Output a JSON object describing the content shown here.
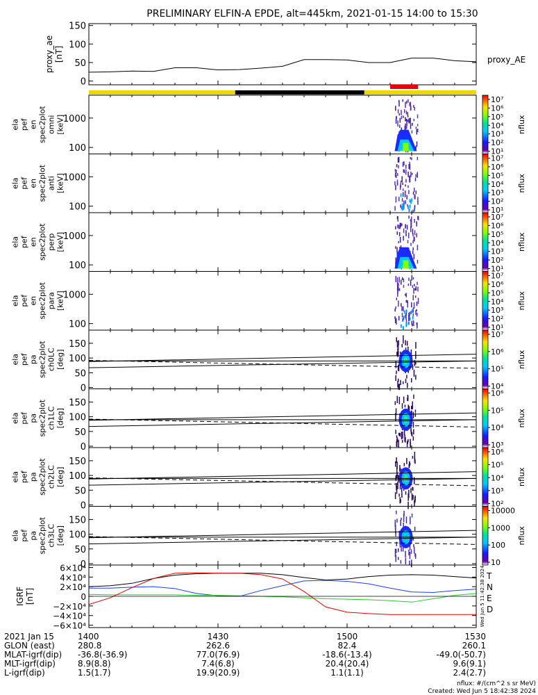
{
  "title": "PRELIMINARY ELFIN-A EPDE, alt=445km, 2021-01-15 14:00 to 15:30",
  "time_axis": {
    "ticks": [
      "1400",
      "1430",
      "1500",
      "1530"
    ],
    "tick_minutes": [
      0,
      30,
      60,
      90
    ],
    "start_minute": 0,
    "end_minute": 90
  },
  "ae_panel": {
    "ylabel_lines": [
      "proxy_ae",
      "[nT]"
    ],
    "legend": "proxy_AE",
    "ylim": [
      -10,
      155
    ],
    "ticks": [
      "150",
      "100",
      "50",
      "0"
    ],
    "tick_values": [
      150,
      100,
      50,
      0
    ]
  },
  "status_bar": {
    "segments": [
      {
        "start": 0,
        "end": 34,
        "color": "#f2d500"
      },
      {
        "start": 34,
        "end": 64,
        "color": "#000000"
      },
      {
        "start": 64,
        "end": 90,
        "color": "#f2d500"
      }
    ],
    "science_zone": {
      "start": 70,
      "end": 76.5,
      "color": "#ee0000"
    }
  },
  "energy_panels": [
    {
      "label_lines": [
        "ela",
        "pef",
        "en",
        "spec2plot",
        "omni",
        "[keV]"
      ],
      "ticks": [
        "1000",
        "100"
      ],
      "tick_values": [
        1000,
        100
      ],
      "cb_ticks": [
        "10⁷",
        "10⁶",
        "10⁵",
        "10⁴",
        "10³",
        "10²",
        "10¹"
      ],
      "cb_label": "nflux",
      "intensity": 1.0
    },
    {
      "label_lines": [
        "ela",
        "pef",
        "en",
        "spec2plot",
        "anti",
        "[keV]"
      ],
      "ticks": [
        "1000",
        "100"
      ],
      "tick_values": [
        1000,
        100
      ],
      "cb_ticks": [
        "10⁷",
        "10⁶",
        "10⁵",
        "10⁴",
        "10³",
        "10²",
        "10¹"
      ],
      "cb_label": "nflux",
      "intensity": 0.35
    },
    {
      "label_lines": [
        "ela",
        "pef",
        "en",
        "spec2plot",
        "perp",
        "[keV]"
      ],
      "ticks": [
        "1000",
        "100"
      ],
      "tick_values": [
        1000,
        100
      ],
      "cb_ticks": [
        "10⁷",
        "10⁶",
        "10⁵",
        "10⁴",
        "10³",
        "10²",
        "10¹"
      ],
      "cb_label": "nflux",
      "intensity": 1.0
    },
    {
      "label_lines": [
        "ela",
        "pef",
        "en",
        "spec2plot",
        "para",
        "[keV]"
      ],
      "ticks": [
        "1000",
        "100"
      ],
      "tick_values": [
        1000,
        100
      ],
      "cb_ticks": [
        "10⁷",
        "10⁶",
        "10⁵",
        "10⁴",
        "10³",
        "10²",
        "10¹"
      ],
      "cb_label": "nflux",
      "intensity": 0.35
    }
  ],
  "pitch_panels": [
    {
      "label_lines": [
        "ela",
        "pef",
        "pa",
        "spec2plot",
        "ch0LC",
        "[deg]"
      ],
      "ticks": [
        "150",
        "100",
        "50",
        "0"
      ],
      "tick_values": [
        150,
        100,
        50,
        0
      ],
      "cb_ticks": [
        "10⁷",
        "10⁶",
        "10⁵",
        "10⁴"
      ],
      "cb_label": "nflux"
    },
    {
      "label_lines": [
        "ela",
        "pef",
        "pa",
        "spec2plot",
        "ch1LC",
        "[deg]"
      ],
      "ticks": [
        "150",
        "100",
        "50",
        "0"
      ],
      "tick_values": [
        150,
        100,
        50,
        0
      ],
      "cb_ticks": [
        "10⁶",
        "10⁵",
        "10⁴",
        "10³"
      ],
      "cb_label": "nflux"
    },
    {
      "label_lines": [
        "ela",
        "pef",
        "pa",
        "spec2plot",
        "ch2LC",
        "[deg]"
      ],
      "ticks": [
        "150",
        "100",
        "50",
        "0"
      ],
      "tick_values": [
        150,
        100,
        50,
        0
      ],
      "cb_ticks": [
        "10⁶",
        "10⁵",
        "10⁴",
        "10³",
        "10²"
      ],
      "cb_label": "nflux"
    },
    {
      "label_lines": [
        "ela",
        "pef",
        "pa",
        "spec2plot",
        "ch3LC",
        "[deg]"
      ],
      "ticks": [
        "150",
        "100",
        "50",
        "0"
      ],
      "tick_values": [
        150,
        100,
        50,
        0
      ],
      "cb_ticks": [
        "10000",
        "1000",
        "100",
        "10"
      ],
      "cb_label": "nflux"
    }
  ],
  "igrf_panel": {
    "label_lines": [
      "IGRF",
      "[nT]"
    ],
    "ticks": [
      "6×10⁴",
      "4×10⁴",
      "2×10⁴",
      "0",
      "−2×10⁴",
      "−4×10⁴",
      "−6×10⁴"
    ],
    "tick_values": [
      60000,
      40000,
      20000,
      0,
      -20000,
      -40000,
      -60000
    ],
    "ylim": [
      -65000,
      65000
    ],
    "legend": [
      {
        "name": "T",
        "color": "#000000"
      },
      {
        "name": "N",
        "color": "#1a3cff"
      },
      {
        "name": "E",
        "color": "#22cc22"
      },
      {
        "name": "D",
        "color": "#dd0000"
      }
    ],
    "side_text": "Wed Jun  5 11:42:38 2024"
  },
  "chart_data": {
    "type": "line",
    "x_unit": "minutes after 14:00 UT",
    "proxy_ae": {
      "x": [
        0,
        5,
        10,
        15,
        20,
        25,
        30,
        35,
        40,
        45,
        50,
        55,
        60,
        65,
        70,
        75,
        80,
        85,
        90
      ],
      "values": [
        24,
        25,
        27,
        26,
        36,
        36,
        30,
        31,
        35,
        40,
        58,
        58,
        57,
        50,
        50,
        62,
        62,
        55,
        52
      ]
    },
    "igrf": {
      "x": [
        0,
        5,
        10,
        15,
        20,
        25,
        30,
        35,
        40,
        45,
        50,
        55,
        60,
        65,
        70,
        75,
        80,
        85,
        90
      ],
      "series": [
        {
          "name": "T",
          "values": [
            20000,
            22000,
            27000,
            37000,
            44000,
            47000,
            48000,
            48000,
            48000,
            45000,
            39000,
            34000,
            36000,
            41000,
            44000,
            45000,
            44000,
            41000,
            38000
          ]
        },
        {
          "name": "N",
          "values": [
            17000,
            17000,
            19000,
            20000,
            16000,
            6000,
            1000,
            0,
            12000,
            22000,
            32000,
            33000,
            31000,
            26000,
            17000,
            9000,
            8000,
            12000,
            15000
          ]
        },
        {
          "name": "E",
          "values": [
            4000,
            3000,
            3000,
            3000,
            3000,
            2000,
            2000,
            1000,
            0,
            -1000,
            -3000,
            -5000,
            -6000,
            -7000,
            -9000,
            -12000,
            -5000,
            2000,
            6000
          ]
        },
        {
          "name": "D",
          "values": [
            -17000,
            -3000,
            18000,
            37000,
            48000,
            49000,
            48000,
            48000,
            45000,
            36000,
            10000,
            -22000,
            -33000,
            -36000,
            -38000,
            -38000,
            -38000,
            -38000,
            -38000
          ]
        }
      ]
    },
    "spectrogram_burst": {
      "start_minute": 71,
      "end_minute": 76.5
    },
    "pitch_angle_lines": {
      "solid_upper": {
        "x": [
          0,
          90
        ],
        "values": [
          88,
          113
        ]
      },
      "solid_middle": {
        "x": [
          0,
          90
        ],
        "values": [
          90,
          90
        ]
      },
      "solid_lower": {
        "x": [
          0,
          90
        ],
        "values": [
          67,
          90
        ]
      },
      "dashed": {
        "x": [
          0,
          90
        ],
        "values": [
          92,
          65
        ]
      }
    }
  },
  "footer": {
    "rows": [
      {
        "label": "2021 Jan 15",
        "values": [
          "1400",
          "1430",
          "1500",
          "1530"
        ]
      },
      {
        "label": "GLON (east)",
        "values": [
          "280.8",
          "262.6",
          "82.4",
          "260.1"
        ]
      },
      {
        "label": "MLAT-igrf(dip)",
        "values": [
          "-36.8(-36.9)",
          "77.0(76.9)",
          "-18.6(-13.4)",
          "-49.0(-50.7)"
        ]
      },
      {
        "label": "MLT-igrf(dip)",
        "values": [
          "8.9(8.8)",
          "7.4(6.8)",
          "20.4(20.4)",
          "9.6(9.1)"
        ]
      },
      {
        "label": "L-igrf(dip)",
        "values": [
          "1.5(1.7)",
          "19.9(20.9)",
          "1.1(1.1)",
          "2.4(2.7)"
        ]
      }
    ],
    "flux_units": "nflux: #/(cm^2 s sr MeV)",
    "created": "Created: Wed Jun  5 18:42:38 2024"
  }
}
